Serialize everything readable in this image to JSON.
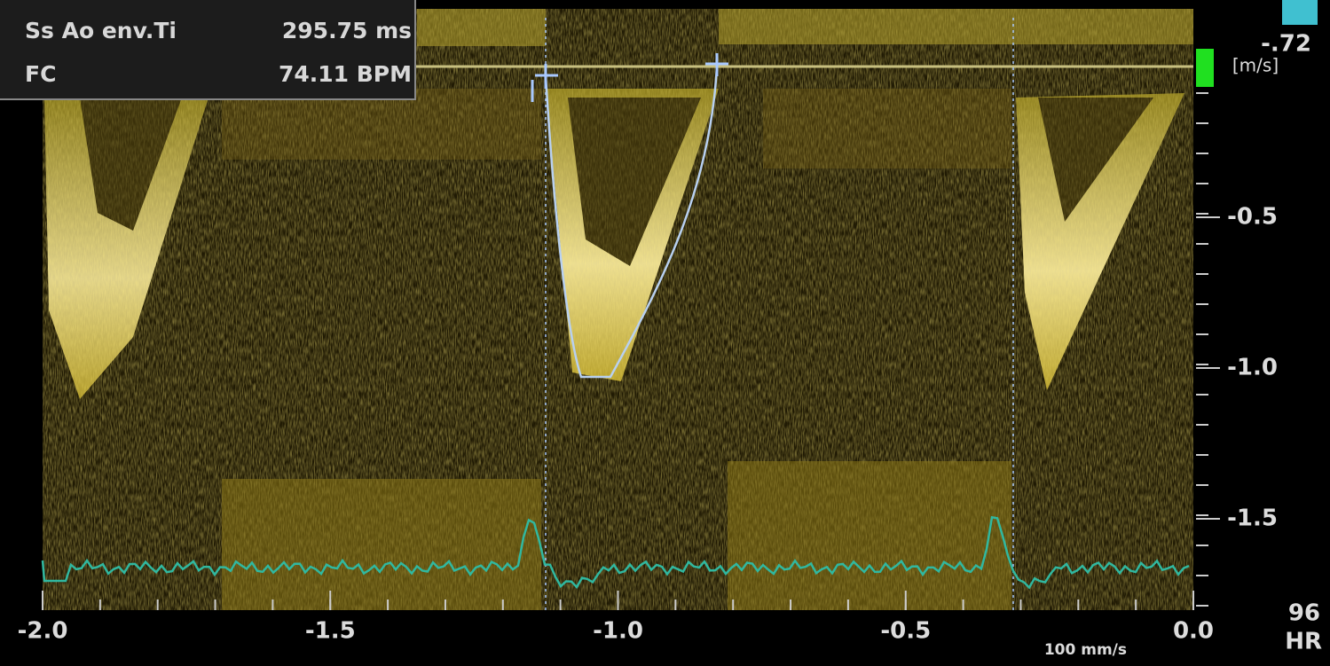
{
  "measurements": [
    {
      "label": "Ss Ao env.Ti",
      "value": "295.75 ms"
    },
    {
      "label": "FC",
      "value": "74.11 BPM"
    }
  ],
  "velocity_scale": {
    "top_label": "-.72",
    "unit": "[m/s]",
    "labels": [
      "-0.5",
      "-1.0",
      "-1.5"
    ]
  },
  "time_axis": {
    "labels": [
      "-2.0",
      "-1.5",
      "-1.0",
      "-0.5",
      "0.0"
    ],
    "sweep_speed": "100 mm/s"
  },
  "heart_rate": {
    "value": "96",
    "label": "HR"
  }
}
